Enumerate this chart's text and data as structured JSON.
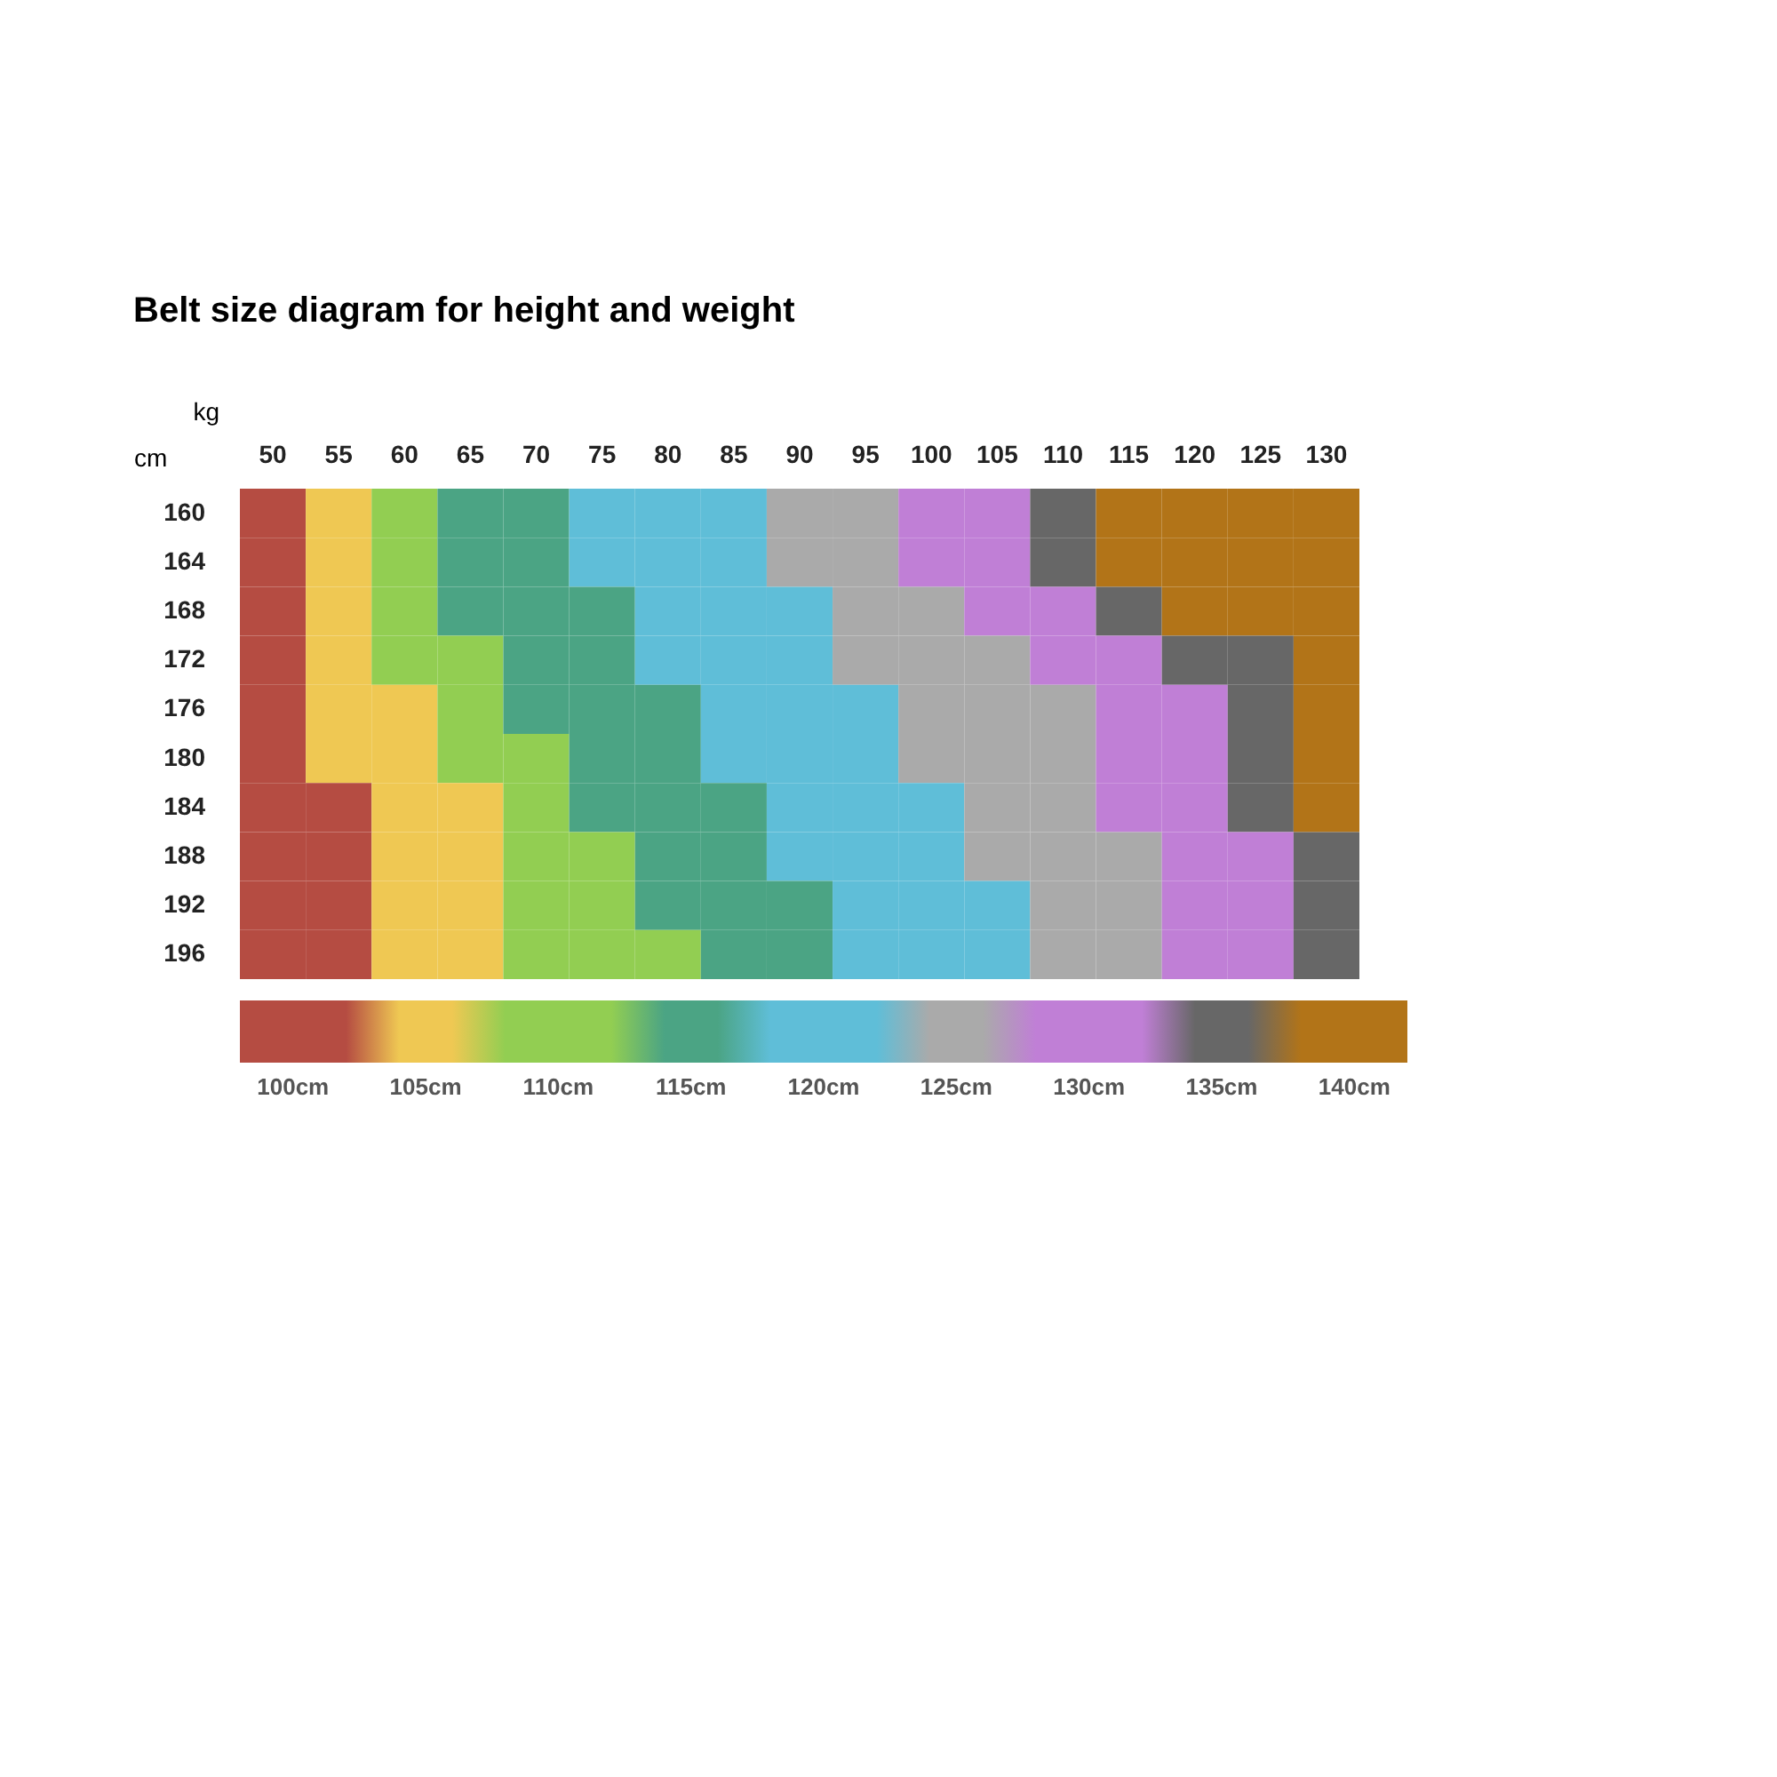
{
  "chart_data": {
    "type": "heatmap",
    "title": "Belt size diagram for height and weight",
    "xlabel": "kg",
    "ylabel": "cm",
    "categories": [
      "50",
      "55",
      "60",
      "65",
      "70",
      "75",
      "80",
      "85",
      "90",
      "95",
      "100",
      "105",
      "110",
      "115",
      "120",
      "125",
      "130"
    ],
    "y_categories": [
      "160",
      "164",
      "168",
      "172",
      "176",
      "180",
      "184",
      "188",
      "192",
      "196"
    ],
    "cells": [
      [
        100,
        105,
        110,
        115,
        115,
        120,
        120,
        120,
        125,
        125,
        130,
        130,
        135,
        140,
        140,
        140,
        140
      ],
      [
        100,
        105,
        110,
        115,
        115,
        120,
        120,
        120,
        125,
        125,
        130,
        130,
        135,
        140,
        140,
        140,
        140
      ],
      [
        100,
        105,
        110,
        115,
        115,
        115,
        120,
        120,
        120,
        125,
        125,
        130,
        130,
        135,
        140,
        140,
        140
      ],
      [
        100,
        105,
        110,
        110,
        115,
        115,
        120,
        120,
        120,
        125,
        125,
        125,
        130,
        130,
        135,
        135,
        140
      ],
      [
        100,
        105,
        105,
        110,
        115,
        115,
        115,
        120,
        120,
        120,
        125,
        125,
        125,
        130,
        130,
        135,
        140
      ],
      [
        100,
        105,
        105,
        110,
        110,
        115,
        115,
        120,
        120,
        120,
        125,
        125,
        125,
        130,
        130,
        135,
        140
      ],
      [
        100,
        100,
        105,
        105,
        110,
        115,
        115,
        115,
        120,
        120,
        120,
        125,
        125,
        130,
        130,
        135,
        140
      ],
      [
        100,
        100,
        105,
        105,
        110,
        110,
        115,
        115,
        120,
        120,
        120,
        125,
        125,
        125,
        130,
        130,
        135
      ],
      [
        100,
        100,
        105,
        105,
        110,
        110,
        115,
        115,
        115,
        120,
        120,
        120,
        125,
        125,
        130,
        130,
        135
      ],
      [
        100,
        100,
        105,
        105,
        110,
        110,
        110,
        115,
        115,
        120,
        120,
        120,
        125,
        125,
        130,
        130,
        135
      ]
    ],
    "clim": [
      98,
      142
    ],
    "cticks": [
      {
        "value": 100,
        "label": "100cm"
      },
      {
        "value": 105,
        "label": "105cm"
      },
      {
        "value": 110,
        "label": "110cm"
      },
      {
        "value": 115,
        "label": "115cm"
      },
      {
        "value": 120,
        "label": "120cm"
      },
      {
        "value": 125,
        "label": "125cm"
      },
      {
        "value": 130,
        "label": "130cm"
      },
      {
        "value": 135,
        "label": "135cm"
      },
      {
        "value": 140,
        "label": "140cm"
      }
    ],
    "colors": [
      "#b54c42",
      "#efc853",
      "#92ce52",
      "#4ba484",
      "#5fbed8",
      "#aaaaaa",
      "#c07fd6",
      "#676767",
      "#b27418"
    ]
  }
}
